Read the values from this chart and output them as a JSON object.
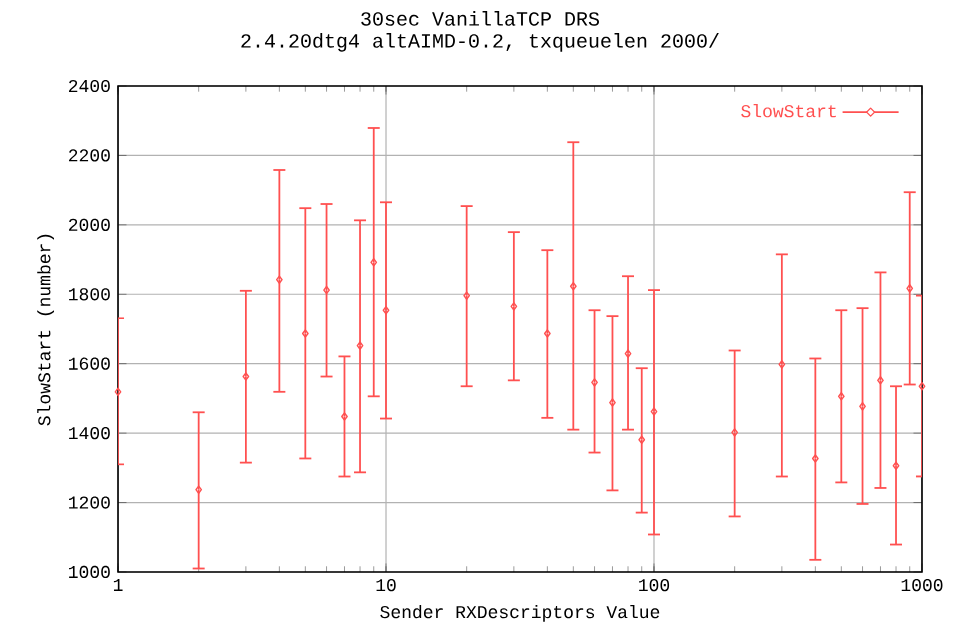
{
  "chart_data": {
    "type": "scatter",
    "title": "30sec VanillaTCP DRS",
    "subtitle": "2.4.20dtg4 altAIMD-0.2, txqueuelen 2000/",
    "xlabel": "Sender RXDescriptors Value",
    "ylabel": "SlowStart (number)",
    "log": "x",
    "grid": true,
    "legend": "top right",
    "marker": "diamond",
    "xlim": [
      1,
      1000
    ],
    "xticks": [
      1,
      10,
      100,
      1000
    ],
    "ylim": [
      1000,
      2400
    ],
    "yticks": [
      1000,
      1200,
      1400,
      1600,
      1800,
      2000,
      2200,
      2400
    ],
    "series": [
      {
        "name": "SlowStart",
        "color": "#ff5050",
        "x": [
          1,
          2,
          3,
          4,
          5,
          6,
          7,
          8,
          9,
          10,
          20,
          30,
          40,
          50,
          60,
          70,
          80,
          90,
          100,
          200,
          300,
          400,
          500,
          600,
          700,
          800,
          900,
          1000
        ],
        "values": [
          1519,
          1237,
          1563,
          1842,
          1687,
          1812,
          1448,
          1652,
          1892,
          1754,
          1796,
          1765,
          1687,
          1823,
          1546,
          1488,
          1629,
          1381,
          1462,
          1402,
          1598,
          1327,
          1506,
          1477,
          1552,
          1306,
          1817,
          1535
        ],
        "errors": [
          [
            1310,
            1731
          ],
          [
            1010,
            1460
          ],
          [
            1315,
            1810
          ],
          [
            1519,
            2158
          ],
          [
            1327,
            2048
          ],
          [
            1563,
            2060
          ],
          [
            1275,
            1621
          ],
          [
            1287,
            2013
          ],
          [
            1506,
            2279
          ],
          [
            1442,
            2065
          ],
          [
            1535,
            2054
          ],
          [
            1552,
            1979
          ],
          [
            1444,
            1927
          ],
          [
            1410,
            2238
          ],
          [
            1344,
            1754
          ],
          [
            1235,
            1737
          ],
          [
            1410,
            1852
          ],
          [
            1171,
            1587
          ],
          [
            1108,
            1812
          ],
          [
            1160,
            1638
          ],
          [
            1275,
            1915
          ],
          [
            1035,
            1615
          ],
          [
            1258,
            1754
          ],
          [
            1196,
            1760
          ],
          [
            1242,
            1863
          ],
          [
            1079,
            1535
          ],
          [
            1540,
            2094
          ],
          [
            1275,
            1796
          ]
        ]
      }
    ]
  }
}
